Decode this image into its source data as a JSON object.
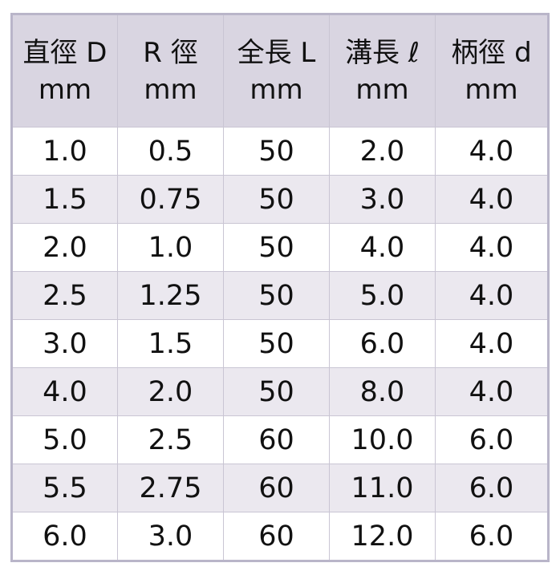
{
  "table": {
    "headers": [
      {
        "name": "直徑 D",
        "unit": "mm"
      },
      {
        "name": "R 徑",
        "unit": "mm"
      },
      {
        "name": "全長 L",
        "unit": "mm"
      },
      {
        "name": "溝長 ℓ",
        "unit": "mm"
      },
      {
        "name": "柄徑 d",
        "unit": "mm"
      }
    ],
    "rows": [
      [
        "1.0",
        "0.5",
        "50",
        "2.0",
        "4.0"
      ],
      [
        "1.5",
        "0.75",
        "50",
        "3.0",
        "4.0"
      ],
      [
        "2.0",
        "1.0",
        "50",
        "4.0",
        "4.0"
      ],
      [
        "2.5",
        "1.25",
        "50",
        "5.0",
        "4.0"
      ],
      [
        "3.0",
        "1.5",
        "50",
        "6.0",
        "4.0"
      ],
      [
        "4.0",
        "2.0",
        "50",
        "8.0",
        "4.0"
      ],
      [
        "5.0",
        "2.5",
        "60",
        "10.0",
        "6.0"
      ],
      [
        "5.5",
        "2.75",
        "60",
        "11.0",
        "6.0"
      ],
      [
        "6.0",
        "3.0",
        "60",
        "12.0",
        "6.0"
      ]
    ]
  },
  "colors": {
    "header_bg": "#d9d5e1",
    "alt_row_bg": "#ebe8ef",
    "border": "#b9b5c9"
  }
}
